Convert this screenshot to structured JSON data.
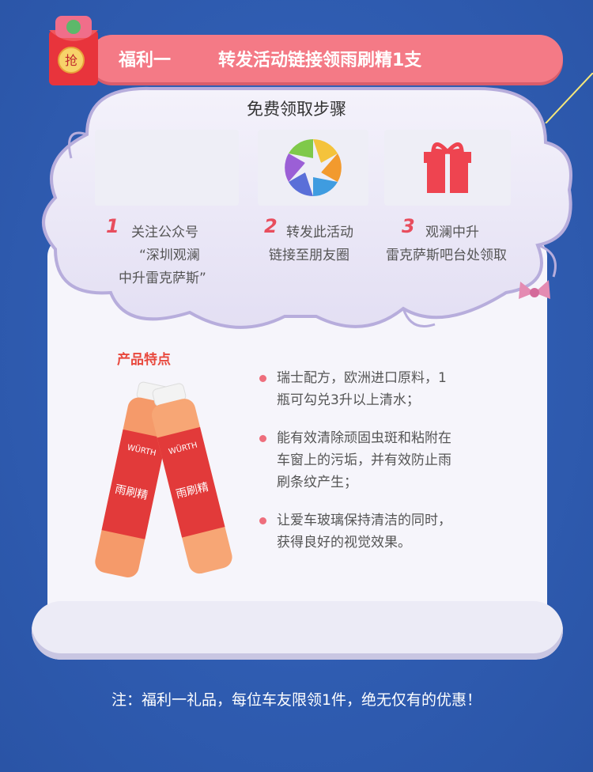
{
  "banner": {
    "label": "福利一",
    "title": "转发活动链接领雨刷精1支"
  },
  "envelope": {
    "icon": "red-envelope-icon",
    "char": "抢"
  },
  "steps": {
    "title": "免费领取步骤",
    "items": [
      {
        "num": "1",
        "lines": [
          "关注公众号",
          "“深圳观澜",
          "中升雷克萨斯”"
        ]
      },
      {
        "num": "2",
        "lines": [
          "转发此活动",
          "链接至朋友圈"
        ]
      },
      {
        "num": "3",
        "lines": [
          "观澜中升",
          "雷克萨斯吧台处领取"
        ]
      }
    ]
  },
  "product": {
    "title": "产品特点",
    "features": [
      {
        "lines": [
          "瑞士配方，欧洲进口原料，1",
          "瓶可勾兑3升以上清水；"
        ]
      },
      {
        "lines": [
          "能有效清除顽固虫斑和粘附在",
          "车窗上的污垢，并有效防止雨",
          "刷条纹产生；"
        ]
      },
      {
        "lines": [
          "让爱车玻璃保持清洁的同时，",
          "获得良好的视觉效果。"
        ]
      }
    ],
    "bottle_brand": "WÜRTH",
    "bottle_name": "雨刷精"
  },
  "note": "注：福利一礼品，每位车友限领1件，绝无仅有的优惠！",
  "colors": {
    "background": "#2e5bb0",
    "banner": "#f47a86",
    "accent_red": "#e84d5d",
    "paper": "#f6f5fb"
  }
}
